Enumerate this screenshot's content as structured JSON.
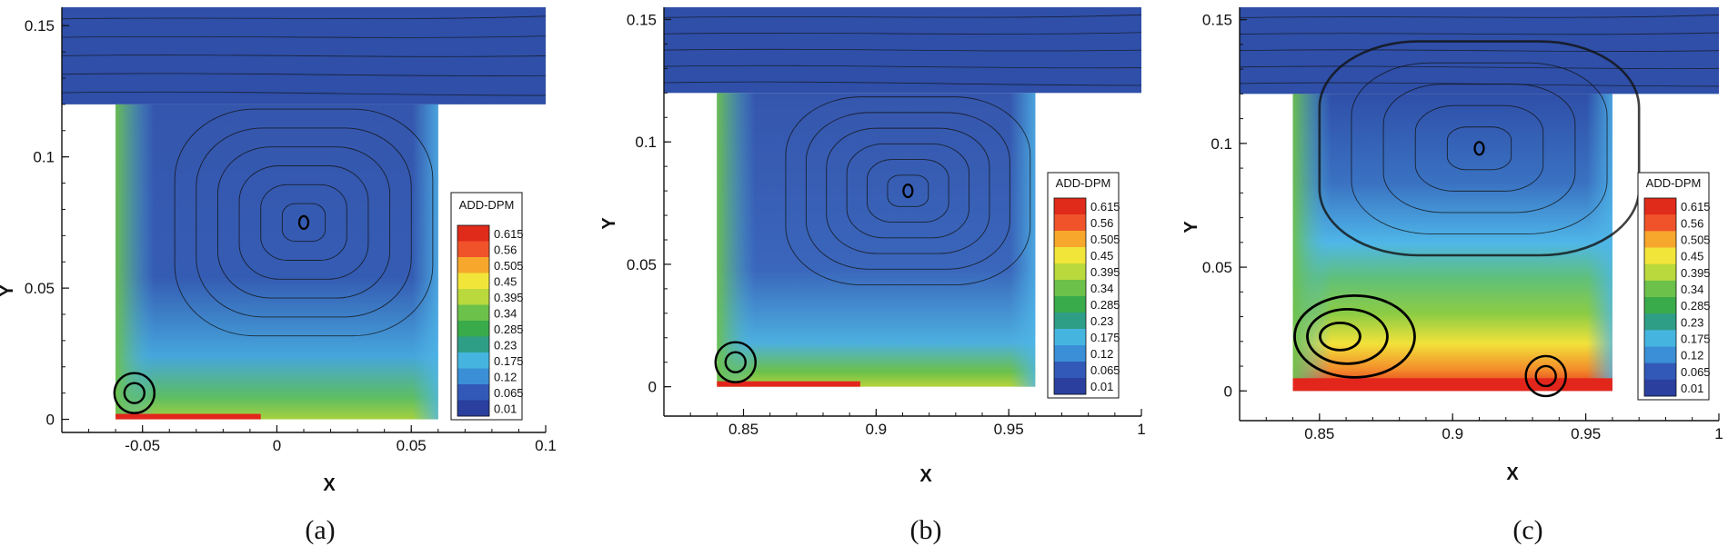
{
  "figure": {
    "panels": [
      {
        "id": "a",
        "caption": "(a)",
        "chart_data": {
          "type": "heatmap",
          "title": "",
          "xlabel": "X",
          "ylabel": "Y",
          "xlim": [
            -0.08,
            0.1
          ],
          "ylim": [
            -0.005,
            0.157
          ],
          "x_ticks": [
            -0.05,
            0,
            0.05,
            0.1
          ],
          "x_tick_labels": [
            "-0.05",
            "0",
            "0.05",
            "0.1"
          ],
          "y_ticks": [
            0,
            0.05,
            0.1,
            0.15
          ],
          "y_tick_labels": [
            "0",
            "0.05",
            "0.1",
            "0.15"
          ],
          "channel": {
            "x": [
              -0.08,
              0.1
            ],
            "y": [
              0.12,
              0.157
            ]
          },
          "cavity": {
            "x": [
              -0.06,
              0.06
            ],
            "y": [
              0,
              0.12
            ]
          },
          "vortex_centers": [
            {
              "x": 0.01,
              "y": 0.075
            },
            {
              "x": -0.053,
              "y": 0.01
            }
          ],
          "colorbar": {
            "title": "ADD-DPM",
            "levels": [
              "0.615",
              "0.56",
              "0.505",
              "0.45",
              "0.395",
              "0.34",
              "0.285",
              "0.23",
              "0.175",
              "0.12",
              "0.065",
              "0.01"
            ],
            "placement": "right"
          }
        }
      },
      {
        "id": "b",
        "caption": "(b)",
        "chart_data": {
          "type": "heatmap",
          "title": "",
          "xlabel": "X",
          "ylabel": "Y",
          "xlim": [
            0.82,
            1.0
          ],
          "ylim": [
            -0.012,
            0.155
          ],
          "x_ticks": [
            0.85,
            0.9,
            0.95,
            1.0
          ],
          "x_tick_labels": [
            "0.85",
            "0.9",
            "0.95",
            "1"
          ],
          "y_ticks": [
            0,
            0.05,
            0.1,
            0.15
          ],
          "y_tick_labels": [
            "0",
            "0.05",
            "0.1",
            "0.15"
          ],
          "channel": {
            "x": [
              0.82,
              1.0
            ],
            "y": [
              0.12,
              0.155
            ]
          },
          "cavity": {
            "x": [
              0.84,
              0.96
            ],
            "y": [
              0,
              0.12
            ]
          },
          "vortex_centers": [
            {
              "x": 0.912,
              "y": 0.08
            },
            {
              "x": 0.847,
              "y": 0.01
            }
          ],
          "colorbar": {
            "title": "ADD-DPM",
            "levels": [
              "0.615",
              "0.56",
              "0.505",
              "0.45",
              "0.395",
              "0.34",
              "0.285",
              "0.23",
              "0.175",
              "0.12",
              "0.065",
              "0.01"
            ],
            "placement": "right"
          }
        }
      },
      {
        "id": "c",
        "caption": "(c)",
        "chart_data": {
          "type": "heatmap",
          "title": "",
          "xlabel": "X",
          "ylabel": "Y",
          "xlim": [
            0.82,
            1.0
          ],
          "ylim": [
            -0.012,
            0.155
          ],
          "x_ticks": [
            0.85,
            0.9,
            0.95,
            1.0
          ],
          "x_tick_labels": [
            "0.85",
            "0.9",
            "0.95",
            "1"
          ],
          "y_ticks": [
            0,
            0.05,
            0.1,
            0.15
          ],
          "y_tick_labels": [
            "0",
            "0.05",
            "0.1",
            "0.15"
          ],
          "channel": {
            "x": [
              0.82,
              1.0
            ],
            "y": [
              0.12,
              0.155
            ]
          },
          "cavity": {
            "x": [
              0.84,
              0.96
            ],
            "y": [
              0,
              0.12
            ]
          },
          "vortex_centers": [
            {
              "x": 0.91,
              "y": 0.098
            },
            {
              "x": 0.855,
              "y": 0.022
            },
            {
              "x": 0.935,
              "y": 0.006
            }
          ],
          "colorbar": {
            "title": "ADD-DPM",
            "levels": [
              "0.615",
              "0.56",
              "0.505",
              "0.45",
              "0.395",
              "0.34",
              "0.285",
              "0.23",
              "0.175",
              "0.12",
              "0.065",
              "0.01"
            ],
            "placement": "right"
          }
        }
      }
    ],
    "colors": {
      "low": "#2f4fa8",
      "cyan": "#4fb6e8",
      "green": "#6cc14a",
      "yellow": "#f2e23a",
      "red": "#e3261c",
      "colorbar_scale": [
        "#e02a1a",
        "#f0532a",
        "#f7a72c",
        "#f2e53a",
        "#b9d93c",
        "#6cc14a",
        "#3aab4a",
        "#2f9e86",
        "#45b5e0",
        "#3a8fd6",
        "#3258b8",
        "#2a3f9e"
      ]
    }
  }
}
